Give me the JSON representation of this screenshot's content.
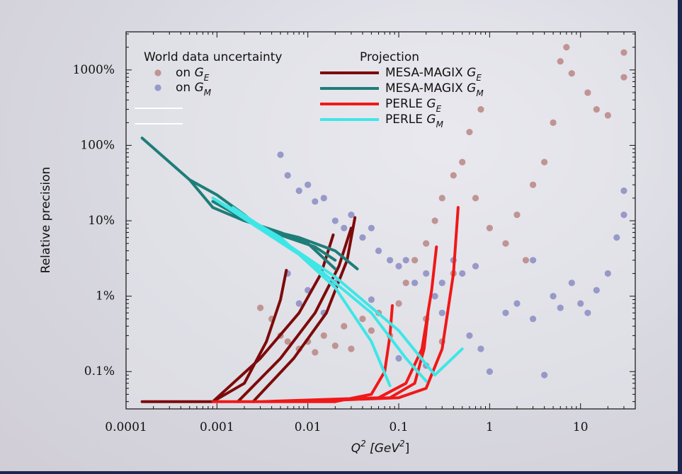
{
  "chart_data": {
    "type": "scatter",
    "xlabel": "Q^2 [GeV^2]",
    "ylabel": "Relative precision",
    "log_x": true,
    "log_y": true,
    "xlim": [
      0.0001,
      40
    ],
    "ylim": [
      0.032,
      3200
    ],
    "xticks": [
      0.0001,
      0.001,
      0.01,
      0.1,
      1,
      10
    ],
    "yticks": [
      {
        "value": 0.1,
        "label": "0.1%"
      },
      {
        "value": 1,
        "label": "1%"
      },
      {
        "value": 10,
        "label": "10%"
      },
      {
        "value": 100,
        "label": "100%"
      },
      {
        "value": 1000,
        "label": "1000%"
      }
    ],
    "legend_titles": [
      "World data uncertainty",
      "Projection"
    ],
    "series": [
      {
        "name": "on G_E",
        "type": "scatter",
        "color": "#b98683",
        "x": [
          0.004,
          0.005,
          0.006,
          0.008,
          0.01,
          0.012,
          0.015,
          0.02,
          0.025,
          0.03,
          0.04,
          0.05,
          0.06,
          0.08,
          0.1,
          0.12,
          0.15,
          0.2,
          0.25,
          0.3,
          0.4,
          0.5,
          0.6,
          0.8,
          1,
          1.5,
          2,
          3,
          4,
          5,
          6,
          7,
          8,
          12,
          15,
          20,
          30,
          30,
          0.003,
          0.2,
          0.3,
          0.4,
          2.5,
          0.7
        ],
        "values": [
          0.5,
          0.3,
          0.25,
          0.2,
          0.25,
          0.18,
          0.3,
          0.22,
          0.4,
          0.2,
          0.5,
          0.35,
          0.6,
          0.3,
          0.8,
          1.5,
          3,
          5,
          10,
          20,
          40,
          60,
          150,
          300,
          8,
          5,
          12,
          30,
          60,
          200,
          1300,
          2000,
          900,
          500,
          300,
          250,
          800,
          1700,
          0.7,
          0.5,
          0.25,
          2,
          3,
          20
        ]
      },
      {
        "name": "on G_M",
        "type": "scatter",
        "color": "#8a8cc2",
        "x": [
          0.005,
          0.006,
          0.008,
          0.01,
          0.012,
          0.015,
          0.02,
          0.025,
          0.03,
          0.04,
          0.05,
          0.06,
          0.08,
          0.1,
          0.12,
          0.15,
          0.2,
          0.25,
          0.3,
          0.4,
          0.5,
          0.6,
          0.8,
          1,
          1.5,
          2,
          3,
          4,
          5,
          6,
          8,
          10,
          15,
          20,
          25,
          30,
          30,
          0.006,
          0.008,
          0.01,
          0.015,
          0.02,
          0.05,
          0.1,
          0.2,
          0.3,
          0.7,
          3,
          12
        ],
        "values": [
          75,
          40,
          25,
          30,
          18,
          20,
          10,
          8,
          12,
          6,
          8,
          4,
          3,
          2.5,
          3,
          1.5,
          2,
          1,
          1.5,
          3,
          2,
          0.3,
          0.2,
          0.1,
          0.6,
          0.8,
          0.5,
          0.09,
          1,
          0.7,
          1.5,
          0.8,
          1.2,
          2,
          6,
          25,
          12,
          2,
          0.8,
          1.2,
          0.6,
          1.5,
          0.9,
          0.15,
          0.12,
          0.6,
          2.5,
          3,
          0.6
        ]
      },
      {
        "name": "MESA-MAGIX G_E",
        "type": "line",
        "color": "#7d0a0a",
        "x": [
          0.00015,
          0.0009,
          0.002,
          0.0035,
          0.005,
          0.0058,
          null,
          0.0009,
          0.003,
          0.008,
          0.014,
          0.019,
          null,
          0.0017,
          0.005,
          0.012,
          0.022,
          0.03,
          null,
          0.0025,
          0.007,
          0.016,
          0.027,
          0.033
        ],
        "values": [
          0.04,
          0.04,
          0.07,
          0.25,
          0.9,
          2.2,
          null,
          0.04,
          0.15,
          0.6,
          2,
          6.5,
          null,
          0.04,
          0.15,
          0.6,
          2.5,
          8,
          null,
          0.04,
          0.15,
          0.6,
          3,
          11
        ]
      },
      {
        "name": "MESA-MAGIX G_M",
        "type": "line",
        "color": "#1e7d78",
        "x": [
          0.00015,
          0.0005,
          0.0009,
          0.002,
          0.005,
          0.01,
          0.02,
          null,
          0.0009,
          0.003,
          0.008,
          0.02,
          0.035,
          null,
          0.0005,
          0.001,
          0.002,
          0.003,
          0.006,
          0.012,
          0.02
        ],
        "values": [
          125,
          35,
          15,
          10,
          7,
          5,
          2.3,
          null,
          18,
          8,
          6,
          4,
          2.3,
          null,
          35,
          22,
          12,
          8,
          6,
          4.5,
          3
        ]
      },
      {
        "name": "PERLE G_E",
        "type": "line",
        "color": "#f01818",
        "x": [
          0.0009,
          0.02,
          0.05,
          0.07,
          0.08,
          0.085,
          null,
          0.003,
          0.06,
          0.12,
          0.18,
          0.23,
          0.26,
          null,
          0.008,
          0.1,
          0.2,
          0.3,
          0.4,
          0.45,
          null,
          0.005,
          0.08,
          0.15,
          0.19,
          0.21
        ],
        "values": [
          0.04,
          0.04,
          0.05,
          0.1,
          0.3,
          0.75,
          null,
          0.04,
          0.045,
          0.07,
          0.2,
          1.2,
          4.5,
          null,
          0.04,
          0.045,
          0.06,
          0.2,
          2,
          15,
          null,
          0.04,
          0.045,
          0.07,
          0.2,
          0.6
        ]
      },
      {
        "name": "PERLE G_M",
        "type": "line",
        "color": "#3fe6e6",
        "x": [
          0.0009,
          0.005,
          0.02,
          0.05,
          0.08,
          null,
          0.0009,
          0.01,
          0.05,
          0.12,
          0.2,
          null,
          0.0015,
          0.02,
          0.1,
          0.25,
          0.5
        ],
        "values": [
          20,
          6,
          1.3,
          0.25,
          0.065,
          null,
          20,
          3,
          0.6,
          0.15,
          0.075,
          null,
          15,
          1.8,
          0.35,
          0.09,
          0.2
        ]
      }
    ]
  }
}
